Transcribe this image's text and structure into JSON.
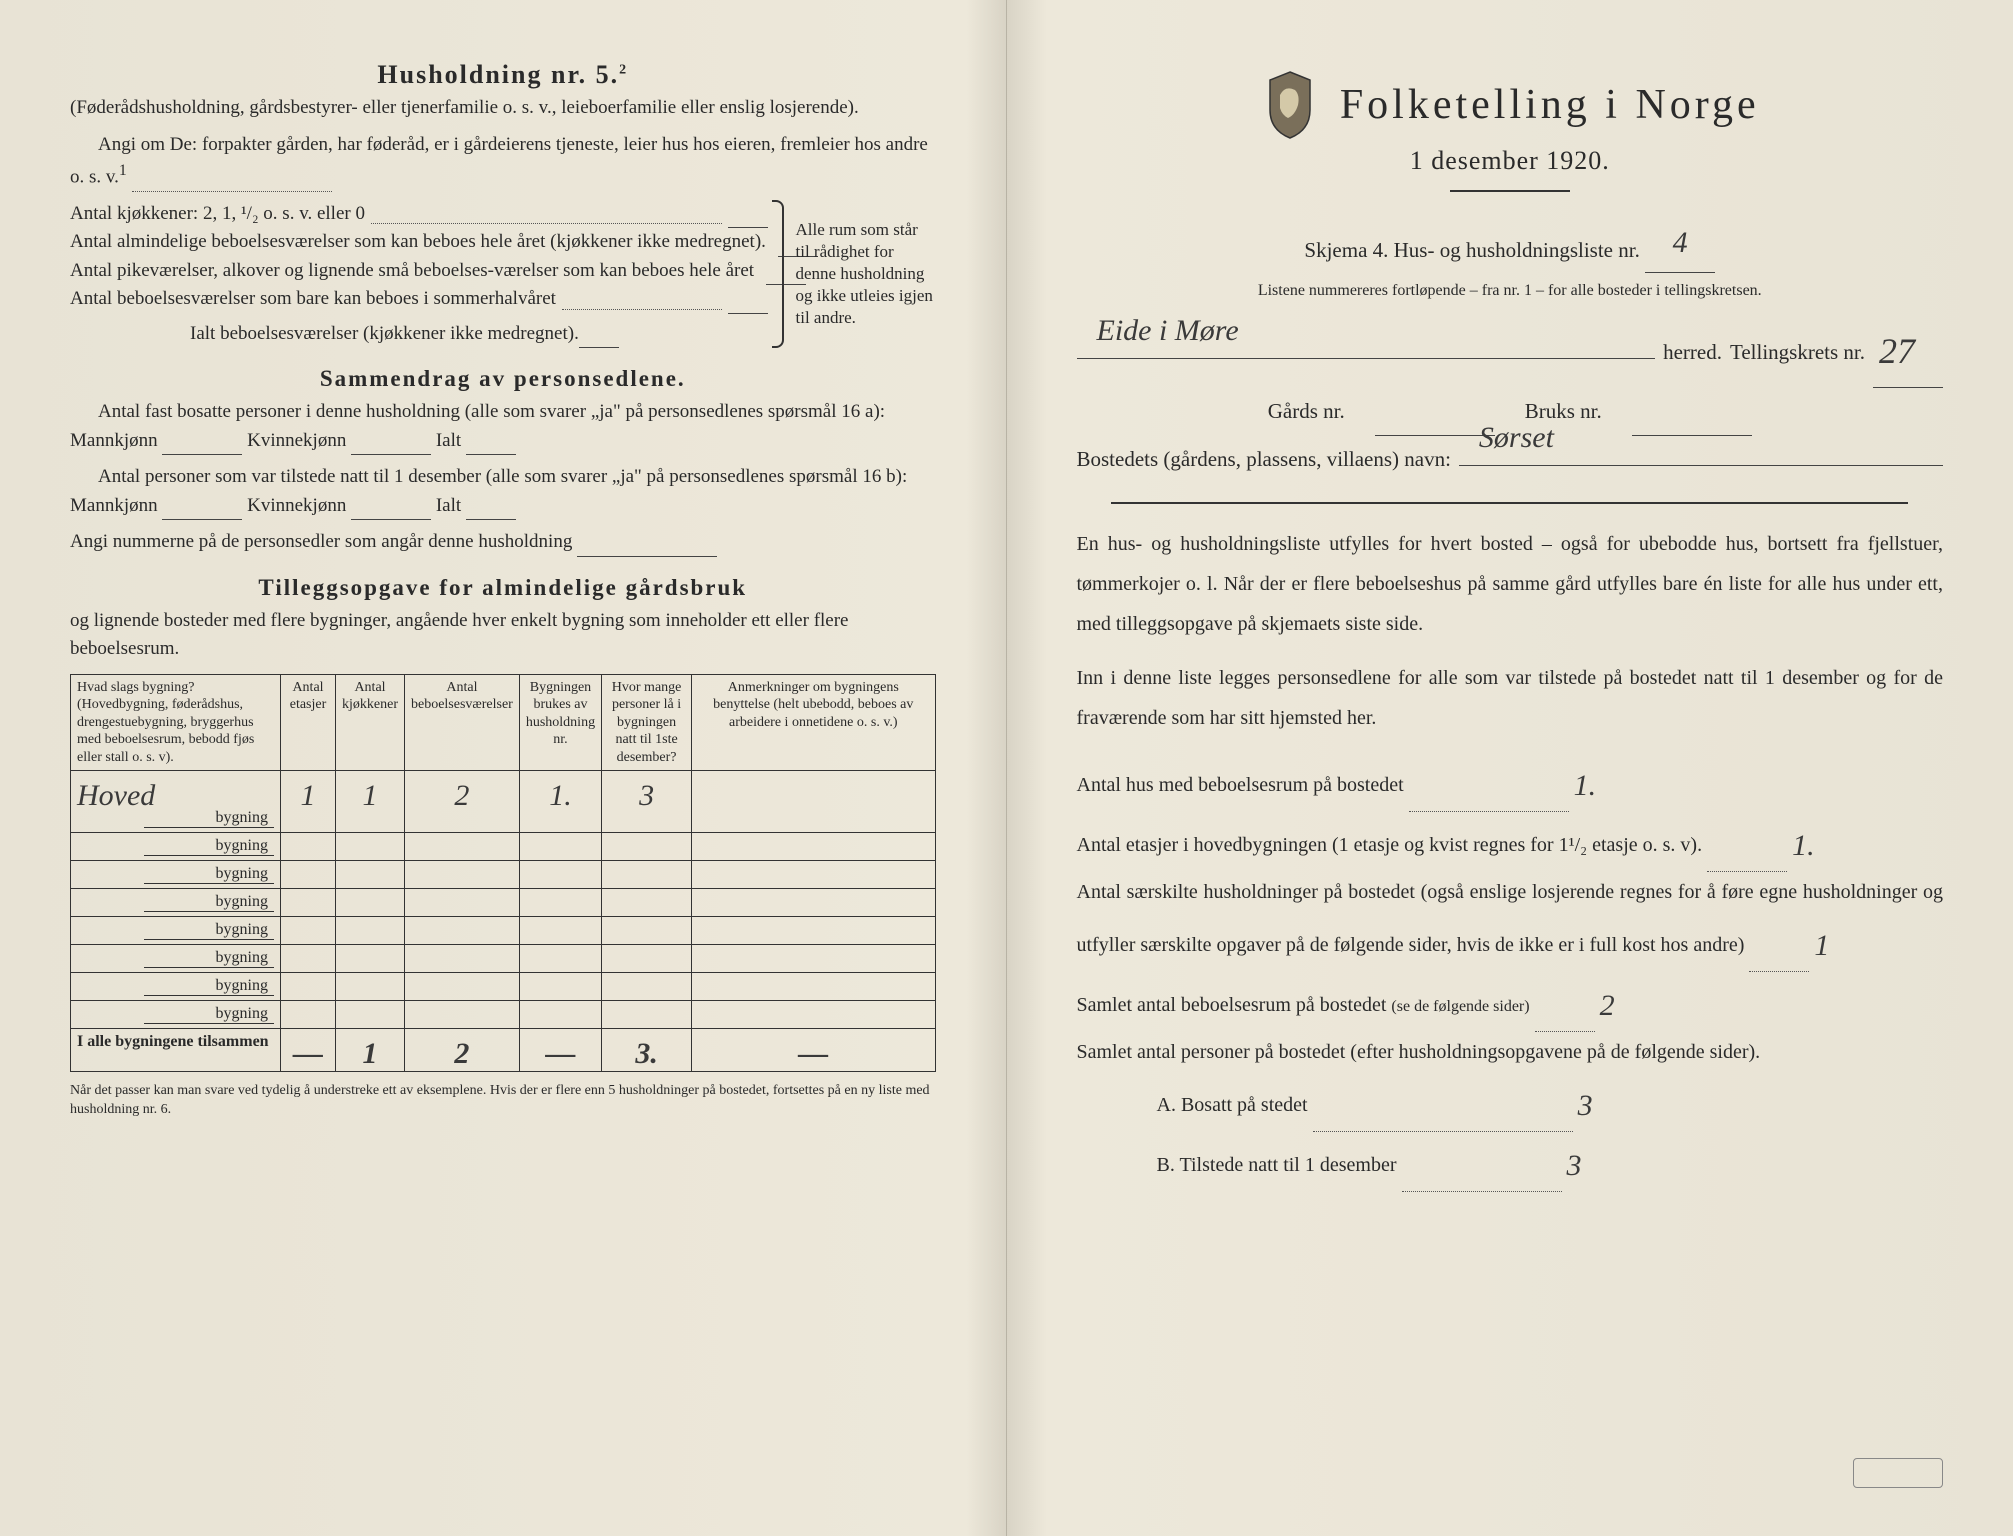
{
  "left": {
    "heading": "Husholdning nr. 5.",
    "heading_sup": "2",
    "sub1": "(Føderådshusholdning, gårdsbestyrer- eller tjenerfamilie o. s. v., leieboerfamilie eller enslig losjerende).",
    "sub2": "Angi om De: forpakter gården, har føderåd, er i gårdeierens tjeneste, leier hus hos eieren, fremleier hos andre o. s. v.",
    "sub2_sup": "1",
    "rows": [
      "Antal kjøkkener: 2, 1, ¹/₂ o. s. v. eller 0",
      "Antal almindelige beboelsesværelser som kan beboes hele året (kjøkkener ikke medregnet).",
      "Antal pikeværelser, alkover og lignende små beboelses-værelser som kan beboes hele året",
      "Antal beboelsesværelser som bare kan beboes i sommerhalvåret"
    ],
    "rows_total": "Ialt beboelsesværelser (kjøkkener ikke medregnet).",
    "brace_note": "Alle rum som står til rådighet for denne husholdning og ikke utleies igjen til andre.",
    "section2_title": "Sammendrag av personsedlene.",
    "s2_l1a": "Antal fast bosatte personer i denne husholdning (alle som svarer „ja\" på personsedlenes spørsmål 16 a): Mannkjønn",
    "s2_kv": "Kvinnekjønn",
    "s2_ialt": "Ialt",
    "s2_l2a": "Antal personer som var tilstede natt til 1 desember (alle som svarer „ja\" på personsedlenes spørsmål 16 b): Mannkjønn",
    "s2_l3": "Angi nummerne på de personsedler som angår denne husholdning",
    "section3_title": "Tilleggsopgave for almindelige gårdsbruk",
    "s3_intro": "og lignende bosteder med flere bygninger, angående hver enkelt bygning som inneholder ett eller flere beboelsesrum.",
    "table": {
      "headers": [
        "Hvad slags bygning?\n(Hovedbygning, føderådshus, drengestuebygning, bryggerhus med beboelsesrum, bebodd fjøs eller stall o. s. v).",
        "Antal etasjer",
        "Antal kjøkkener",
        "Antal beboelsesværelser",
        "Bygningen brukes av husholdning nr.",
        "Hvor mange personer lå i bygningen natt til 1ste desember?",
        "Anmerkninger om bygningens benyttelse (helt ubebodd, beboes av arbeidere i onnetidene o. s. v.)"
      ],
      "rows": [
        {
          "bygning_prefix": "Hoved",
          "label": "bygning",
          "v": [
            "1",
            "1",
            "2",
            "1.",
            "3",
            ""
          ]
        },
        {
          "bygning_prefix": "",
          "label": "bygning",
          "v": [
            "",
            "",
            "",
            "",
            "",
            ""
          ]
        },
        {
          "bygning_prefix": "",
          "label": "bygning",
          "v": [
            "",
            "",
            "",
            "",
            "",
            ""
          ]
        },
        {
          "bygning_prefix": "",
          "label": "bygning",
          "v": [
            "",
            "",
            "",
            "",
            "",
            ""
          ]
        },
        {
          "bygning_prefix": "",
          "label": "bygning",
          "v": [
            "",
            "",
            "",
            "",
            "",
            ""
          ]
        },
        {
          "bygning_prefix": "",
          "label": "bygning",
          "v": [
            "",
            "",
            "",
            "",
            "",
            ""
          ]
        },
        {
          "bygning_prefix": "",
          "label": "bygning",
          "v": [
            "",
            "",
            "",
            "",
            "",
            ""
          ]
        },
        {
          "bygning_prefix": "",
          "label": "bygning",
          "v": [
            "",
            "",
            "",
            "",
            "",
            ""
          ]
        }
      ],
      "footer_label": "I alle bygningene tilsammen",
      "footer": [
        "—",
        "1",
        "2",
        "—",
        "3.",
        "—"
      ]
    },
    "footnote": "Når det passer kan man svare ved tydelig å understreke ett av eksemplene.\nHvis der er flere enn 5 husholdninger på bostedet, fortsettes på en ny liste med husholdning nr. 6."
  },
  "right": {
    "title": "Folketelling i Norge",
    "date": "1 desember 1920.",
    "skjema": "Skjema 4.  Hus- og husholdningsliste nr.",
    "skjema_val": "4",
    "listene": "Listene nummereres fortløpende – fra nr. 1 – for alle bosteder i tellingskretsen.",
    "herred_val": "Eide i Møre",
    "herred_lbl": "herred.",
    "krets_lbl": "Tellingskrets nr.",
    "krets_val": "27",
    "gards_lbl": "Gårds nr.",
    "gards_val": "",
    "bruks_lbl": "Bruks nr.",
    "bruks_val": "",
    "bosted_lbl": "Bostedets (gårdens, plassens, villaens) navn:",
    "bosted_val": "Sørset",
    "para1": "En hus- og husholdningsliste utfylles for hvert bosted – også for ubebodde hus, bortsett fra fjellstuer, tømmerkojer o. l.  Når der er flere beboelseshus på samme gård utfylles bare én liste for alle hus under ett, med tilleggsopgave på skjemaets siste side.",
    "para2": "Inn i denne liste legges personsedlene for alle som var tilstede på bostedet natt til 1 desember og for de fraværende som har sitt hjemsted her.",
    "q1": "Antal hus med beboelsesrum på bostedet",
    "q1_val": "1.",
    "q2a": "Antal etasjer i hovedbygningen (1 etasje og kvist regnes for 1¹/₂ etasje o. s. v).",
    "q2_val": "1.",
    "q3": "Antal særskilte husholdninger på bostedet (også enslige losjerende regnes for å føre egne husholdninger og utfyller særskilte opgaver på de følgende sider, hvis de ikke er i full kost hos andre)",
    "q3_val": "1",
    "q4": "Samlet antal beboelsesrum på bostedet",
    "q4_paren": "(se de følgende sider)",
    "q4_val": "2",
    "q5": "Samlet antal personer på bostedet (efter husholdningsopgavene på de følgende sider).",
    "qA": "A.  Bosatt på stedet",
    "qA_val": "3",
    "qB": "B.  Tilstede natt til 1 desember",
    "qB_val": "3"
  },
  "colors": {
    "paper": "#ede8da",
    "ink": "#2a2a2a",
    "handwrite": "#3a3a3a"
  }
}
